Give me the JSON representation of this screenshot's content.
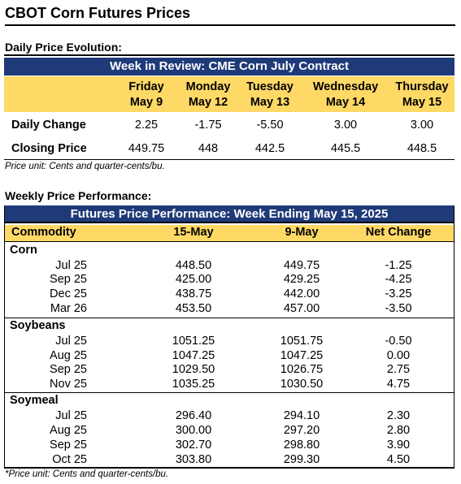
{
  "title": "CBOT Corn Futures Prices",
  "daily": {
    "section_label": "Daily Price Evolution:",
    "banner": "Week in Review: CME Corn July Contract",
    "days": [
      {
        "day": "Friday",
        "date": "May 9"
      },
      {
        "day": "Monday",
        "date": "May 12"
      },
      {
        "day": "Tuesday",
        "date": "May 13"
      },
      {
        "day": "Wednesday",
        "date": "May 14"
      },
      {
        "day": "Thursday",
        "date": "May 15"
      }
    ],
    "rows": [
      {
        "label": "Daily Change",
        "values": [
          "2.25",
          "-1.75",
          "-5.50",
          "3.00",
          "3.00"
        ]
      },
      {
        "label": "Closing Price",
        "values": [
          "449.75",
          "448",
          "442.5",
          "445.5",
          "448.5"
        ]
      }
    ],
    "note": "Price unit: Cents and quarter-cents/bu."
  },
  "weekly": {
    "section_label": "Weekly Price Performance:",
    "banner": "Futures Price Performance: Week Ending May 15, 2025",
    "headers": [
      "Commodity",
      "15-May",
      "9-May",
      "Net Change"
    ],
    "groups": [
      {
        "name": "Corn",
        "rows": [
          {
            "contract": "Jul 25",
            "current": "448.50",
            "previous": "449.75",
            "change": "-1.25"
          },
          {
            "contract": "Sep 25",
            "current": "425.00",
            "previous": "429.25",
            "change": "-4.25"
          },
          {
            "contract": "Dec 25",
            "current": "438.75",
            "previous": "442.00",
            "change": "-3.25"
          },
          {
            "contract": "Mar 26",
            "current": "453.50",
            "previous": "457.00",
            "change": "-3.50"
          }
        ]
      },
      {
        "name": "Soybeans",
        "rows": [
          {
            "contract": "Jul 25",
            "current": "1051.25",
            "previous": "1051.75",
            "change": "-0.50"
          },
          {
            "contract": "Aug 25",
            "current": "1047.25",
            "previous": "1047.25",
            "change": "0.00"
          },
          {
            "contract": "Sep 25",
            "current": "1029.50",
            "previous": "1026.75",
            "change": "2.75"
          },
          {
            "contract": "Nov 25",
            "current": "1035.25",
            "previous": "1030.50",
            "change": "4.75"
          }
        ]
      },
      {
        "name": "Soymeal",
        "rows": [
          {
            "contract": "Jul 25",
            "current": "296.40",
            "previous": "294.10",
            "change": "2.30"
          },
          {
            "contract": "Aug 25",
            "current": "300.00",
            "previous": "297.20",
            "change": "2.80"
          },
          {
            "contract": "Sep 25",
            "current": "302.70",
            "previous": "298.80",
            "change": "3.90"
          },
          {
            "contract": "Oct 25",
            "current": "303.80",
            "previous": "299.30",
            "change": "4.50"
          }
        ]
      }
    ],
    "note": "*Price unit: Cents and quarter-cents/bu."
  },
  "colors": {
    "banner": "#1f3a78",
    "header_fill": "#ffd966"
  }
}
